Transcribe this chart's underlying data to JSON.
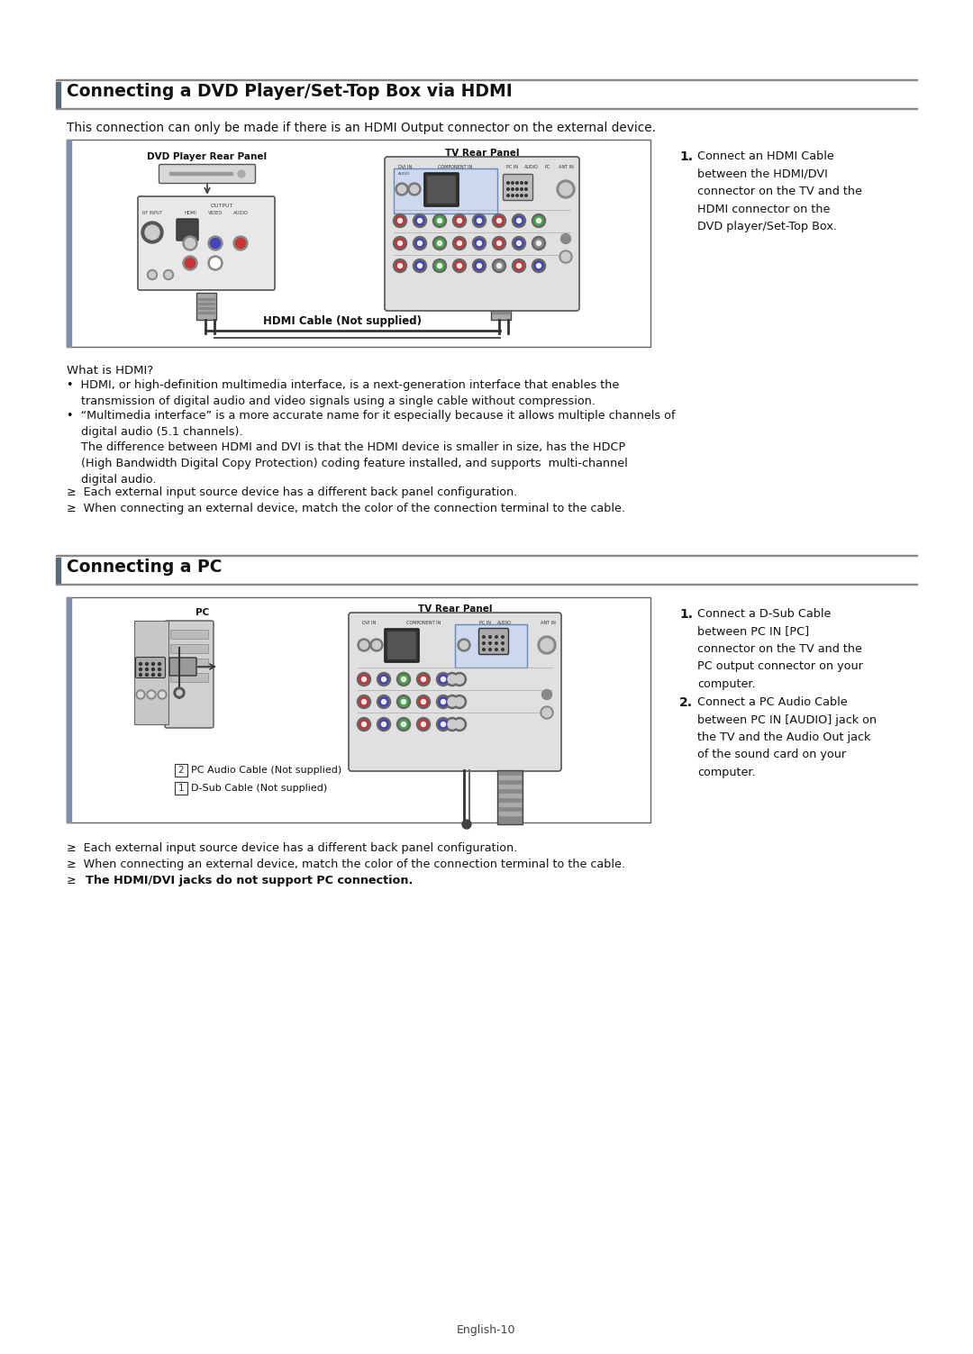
{
  "bg_color": "#ffffff",
  "page_width": 10.8,
  "page_height": 15.03,
  "section1_title": "Connecting a DVD Player/Set-Top Box via HDMI",
  "section1_intro": "This connection can only be made if there is an HDMI Output connector on the external device.",
  "hdmi_step1_num": "1.",
  "hdmi_step1_text": "Connect an HDMI Cable\nbetween the HDMI/DVI\nconnector on the TV and the\nHDMI connector on the\nDVD player/Set-Top Box.",
  "dvd_label": "DVD Player Rear Panel",
  "tv_label1": "TV Rear Panel",
  "hdmi_cable_label": "HDMI Cable (Not supplied)",
  "what_is_hdmi_title": "What is HDMI?",
  "hdmi_bullet1": "•  HDMI, or high-definition multimedia interface, is a next-generation interface that enables the\n    transmission of digital audio and video signals using a single cable without compression.",
  "hdmi_bullet2": "•  “Multimedia interface” is a more accurate name for it especially because it allows multiple channels of\n    digital audio (5.1 channels).",
  "hdmi_para": "    The difference between HDMI and DVI is that the HDMI device is smaller in size, has the HDCP\n    (High Bandwidth Digital Copy Protection) coding feature installed, and supports  multi-channel\n    digital audio.",
  "hdmi_note1": "≥  Each external input source device has a different back panel configuration.",
  "hdmi_note2": "≥  When connecting an external device, match the color of the connection terminal to the cable.",
  "section2_title": "Connecting a PC",
  "tv_label2": "TV Rear Panel",
  "pc_label": "PC",
  "pc_step1_num": "1.",
  "pc_step1_text": "Connect a D-Sub Cable\nbetween PC IN [PC]\nconnector on the TV and the\nPC output connector on your\ncomputer.",
  "pc_step2_num": "2.",
  "pc_step2_text": "Connect a PC Audio Cable\nbetween PC IN [AUDIO] jack on\nthe TV and the Audio Out jack\nof the sound card on your\ncomputer.",
  "pc_cable1_label": "PC Audio Cable (Not supplied)",
  "pc_cable2_label": "D-Sub Cable (Not supplied)",
  "pc_note1": "≥  Each external input source device has a different back panel configuration.",
  "pc_note2": "≥  When connecting an external device, match the color of the connection terminal to the cable.",
  "pc_note3": "≥  ",
  "pc_note3_bold": "The HDMI/DVI jacks do not support PC connection.",
  "footer": "English-10",
  "accent_color": "#4a4a6a",
  "text_color": "#111111"
}
